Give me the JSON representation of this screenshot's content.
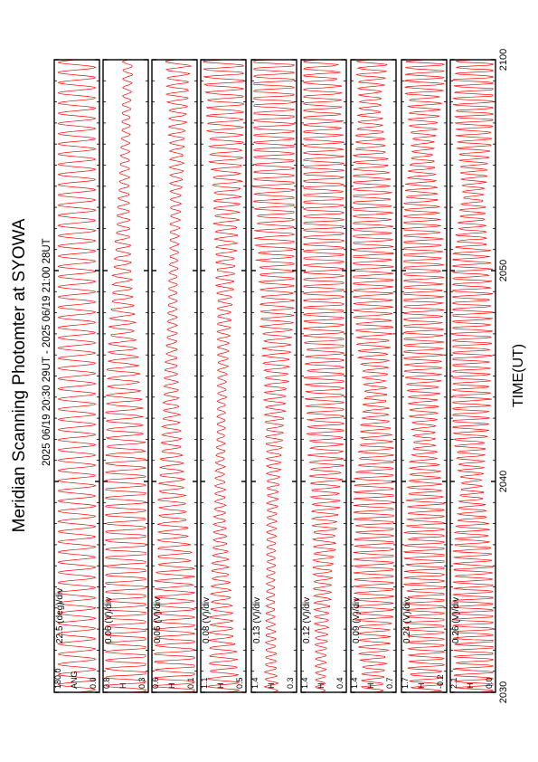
{
  "title": "Meridian Scanning Photomter at SYOWA",
  "time_range": "2025 06/19 20:30 29UT - 2025 06/19 21:00 28UT",
  "x_axis": {
    "label": "TIME(UT)",
    "range": [
      2030,
      2100
    ],
    "tick_labels": [
      "2030",
      "2040",
      "2050",
      "2100"
    ]
  },
  "colors": {
    "trace": "#ff0000",
    "axis": "#000000",
    "background": "#ffffff"
  },
  "chart_data": {
    "type": "line",
    "orientation": "rotated 90deg clockwise; time runs bottom-to-top",
    "x_label": "TIME(UT)",
    "x_range": [
      2030,
      2100
    ],
    "panels": [
      {
        "channel": "ANG",
        "scale": "22.5 (deg)/div",
        "y_min": "0.0",
        "y_max": "180.0",
        "signal": "periodic scan sweep"
      },
      {
        "channel": "H",
        "scale": "0.06 (V)/div",
        "y_min": "0.3",
        "y_max": "0.8",
        "signal": "oscillating intensity"
      },
      {
        "channel": "H",
        "scale": "0.06 (V)/div",
        "y_min": "0.1",
        "y_max": "0.6",
        "signal": "oscillating intensity"
      },
      {
        "channel": "H",
        "scale": "0.08 (V)/div",
        "y_min": "0.5",
        "y_max": "1.1",
        "signal": "oscillating intensity"
      },
      {
        "channel": "H",
        "scale": "0.13 (V)/div",
        "y_min": "0.3",
        "y_max": "1.4",
        "signal": "oscillating intensity"
      },
      {
        "channel": "H",
        "scale": "0.12 (V)/div",
        "y_min": "0.4",
        "y_max": "1.4",
        "signal": "oscillating intensity"
      },
      {
        "channel": "H",
        "scale": "0.09 (V)/div",
        "y_min": "0.7",
        "y_max": "1.4",
        "signal": "oscillating intensity"
      },
      {
        "channel": "H",
        "scale": "0.24 (V)/div",
        "y_min": "-0.2",
        "y_max": "1.7",
        "signal": "oscillating intensity"
      },
      {
        "channel": "H",
        "scale": "0.26 (V)/div",
        "y_min": "0.0",
        "y_max": "2.1",
        "signal": "oscillating intensity"
      }
    ]
  }
}
